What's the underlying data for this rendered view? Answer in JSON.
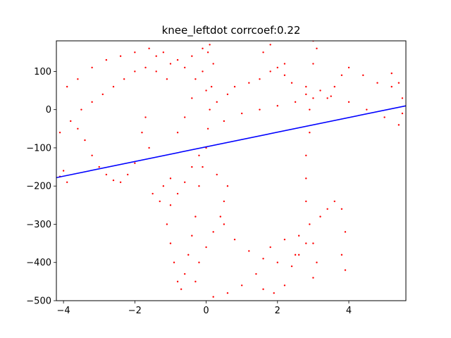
{
  "chart_data": {
    "type": "scatter",
    "title": "knee_leftdot corrcoef:0.22",
    "xlabel": "",
    "ylabel": "",
    "xlim": [
      -4.2,
      5.6
    ],
    "ylim": [
      -500,
      180
    ],
    "grid": false,
    "x_ticks": [
      {
        "value": -4,
        "label": "−4"
      },
      {
        "value": -2,
        "label": "−2"
      },
      {
        "value": 0,
        "label": "0"
      },
      {
        "value": 2,
        "label": "2"
      },
      {
        "value": 4,
        "label": "4"
      }
    ],
    "y_ticks": [
      {
        "value": 100,
        "label": "100"
      },
      {
        "value": 0,
        "label": "0"
      },
      {
        "value": -100,
        "label": "−100"
      },
      {
        "value": -200,
        "label": "−200"
      },
      {
        "value": -300,
        "label": "−300"
      },
      {
        "value": -400,
        "label": "−400"
      },
      {
        "value": -500,
        "label": "−500"
      }
    ],
    "series": [
      {
        "kind": "scatter",
        "color": "#ff0000",
        "points": [
          [
            -4.1,
            -175
          ],
          [
            -4.0,
            -160
          ],
          [
            -3.9,
            -190
          ],
          [
            -4.1,
            -60
          ],
          [
            -3.8,
            -30
          ],
          [
            -3.6,
            -50
          ],
          [
            -3.4,
            -80
          ],
          [
            -3.2,
            -120
          ],
          [
            -3.0,
            -150
          ],
          [
            -2.8,
            -170
          ],
          [
            -2.6,
            -185
          ],
          [
            -2.4,
            -190
          ],
          [
            -2.2,
            -170
          ],
          [
            -2.0,
            -140
          ],
          [
            -3.9,
            60
          ],
          [
            -3.6,
            80
          ],
          [
            -3.2,
            110
          ],
          [
            -2.8,
            130
          ],
          [
            -2.4,
            140
          ],
          [
            -2.0,
            150
          ],
          [
            -1.6,
            160
          ],
          [
            -1.2,
            150
          ],
          [
            -0.8,
            130
          ],
          [
            -0.4,
            140
          ],
          [
            -0.1,
            160
          ],
          [
            -3.5,
            0
          ],
          [
            -3.2,
            20
          ],
          [
            -2.9,
            40
          ],
          [
            -2.6,
            60
          ],
          [
            -2.3,
            80
          ],
          [
            -2.0,
            100
          ],
          [
            -1.7,
            110
          ],
          [
            -1.4,
            100
          ],
          [
            -1.1,
            80
          ],
          [
            -1.0,
            -250
          ],
          [
            -1.1,
            -300
          ],
          [
            -1.0,
            -350
          ],
          [
            -0.9,
            -400
          ],
          [
            -0.8,
            -450
          ],
          [
            -0.7,
            -470
          ],
          [
            -0.6,
            -430
          ],
          [
            -0.5,
            -380
          ],
          [
            -0.4,
            -330
          ],
          [
            -0.3,
            -280
          ],
          [
            -0.2,
            -200
          ],
          [
            -0.1,
            -150
          ],
          [
            0.0,
            -100
          ],
          [
            0.05,
            -50
          ],
          [
            0.1,
            0
          ],
          [
            0.0,
            50
          ],
          [
            -0.1,
            100
          ],
          [
            0.05,
            150
          ],
          [
            0.1,
            170
          ],
          [
            0.2,
            120
          ],
          [
            0.15,
            60
          ],
          [
            0.3,
            20
          ],
          [
            -1.5,
            -220
          ],
          [
            -1.3,
            -240
          ],
          [
            -1.2,
            -200
          ],
          [
            -1.0,
            -180
          ],
          [
            -0.8,
            -220
          ],
          [
            -0.6,
            -190
          ],
          [
            -0.4,
            -150
          ],
          [
            -0.2,
            -120
          ],
          [
            -1.6,
            -100
          ],
          [
            -1.8,
            -60
          ],
          [
            -1.7,
            -20
          ],
          [
            0.5,
            -30
          ],
          [
            1.0,
            -10
          ],
          [
            1.5,
            0
          ],
          [
            2.0,
            10
          ],
          [
            2.5,
            20
          ],
          [
            3.0,
            30
          ],
          [
            3.5,
            35
          ],
          [
            4.0,
            20
          ],
          [
            4.5,
            0
          ],
          [
            5.0,
            -20
          ],
          [
            5.4,
            -40
          ],
          [
            5.5,
            -10
          ],
          [
            5.5,
            30
          ],
          [
            5.4,
            70
          ],
          [
            5.2,
            95
          ],
          [
            1.5,
            80
          ],
          [
            1.8,
            100
          ],
          [
            2.0,
            110
          ],
          [
            2.2,
            90
          ],
          [
            2.4,
            70
          ],
          [
            2.8,
            60
          ],
          [
            3.2,
            50
          ],
          [
            3.4,
            30
          ],
          [
            3.6,
            60
          ],
          [
            3.8,
            90
          ],
          [
            4.0,
            110
          ],
          [
            4.4,
            90
          ],
          [
            4.8,
            70
          ],
          [
            5.2,
            60
          ],
          [
            2.8,
            40
          ],
          [
            2.9,
            0
          ],
          [
            2.9,
            -60
          ],
          [
            2.8,
            -120
          ],
          [
            2.8,
            -180
          ],
          [
            2.8,
            -240
          ],
          [
            2.9,
            -300
          ],
          [
            3.0,
            -350
          ],
          [
            3.1,
            -400
          ],
          [
            3.0,
            -440
          ],
          [
            3.2,
            -280
          ],
          [
            3.4,
            -260
          ],
          [
            3.6,
            -240
          ],
          [
            3.8,
            -260
          ],
          [
            3.9,
            -320
          ],
          [
            3.8,
            -380
          ],
          [
            3.9,
            -420
          ],
          [
            0.5,
            -300
          ],
          [
            0.8,
            -340
          ],
          [
            1.2,
            -370
          ],
          [
            1.6,
            -390
          ],
          [
            2.0,
            -400
          ],
          [
            2.4,
            -410
          ],
          [
            2.6,
            -380
          ],
          [
            2.8,
            -350
          ],
          [
            2.6,
            -330
          ],
          [
            2.2,
            -340
          ],
          [
            1.8,
            -360
          ],
          [
            1.4,
            -430
          ],
          [
            1.0,
            -460
          ],
          [
            0.6,
            -480
          ],
          [
            0.2,
            -490
          ],
          [
            -0.3,
            -450
          ],
          [
            -0.2,
            -400
          ],
          [
            0.0,
            -360
          ],
          [
            0.2,
            -320
          ],
          [
            0.4,
            -280
          ],
          [
            0.5,
            -240
          ],
          [
            0.6,
            -200
          ],
          [
            0.3,
            -170
          ],
          [
            -0.8,
            -60
          ],
          [
            -0.6,
            -20
          ],
          [
            -0.4,
            30
          ],
          [
            -0.3,
            80
          ],
          [
            -0.6,
            110
          ],
          [
            -1.0,
            120
          ],
          [
            -1.4,
            140
          ],
          [
            3.0,
            120
          ],
          [
            3.1,
            160
          ],
          [
            3.0,
            180
          ],
          [
            1.6,
            150
          ],
          [
            1.8,
            170
          ],
          [
            2.2,
            120
          ],
          [
            0.6,
            40
          ],
          [
            0.8,
            60
          ],
          [
            1.2,
            70
          ],
          [
            2.5,
            -380
          ],
          [
            2.2,
            -460
          ],
          [
            1.9,
            -480
          ],
          [
            1.6,
            -470
          ]
        ]
      },
      {
        "kind": "line",
        "color": "#0000ff",
        "points": [
          [
            -4.2,
            -178
          ],
          [
            5.6,
            10
          ]
        ]
      }
    ]
  }
}
